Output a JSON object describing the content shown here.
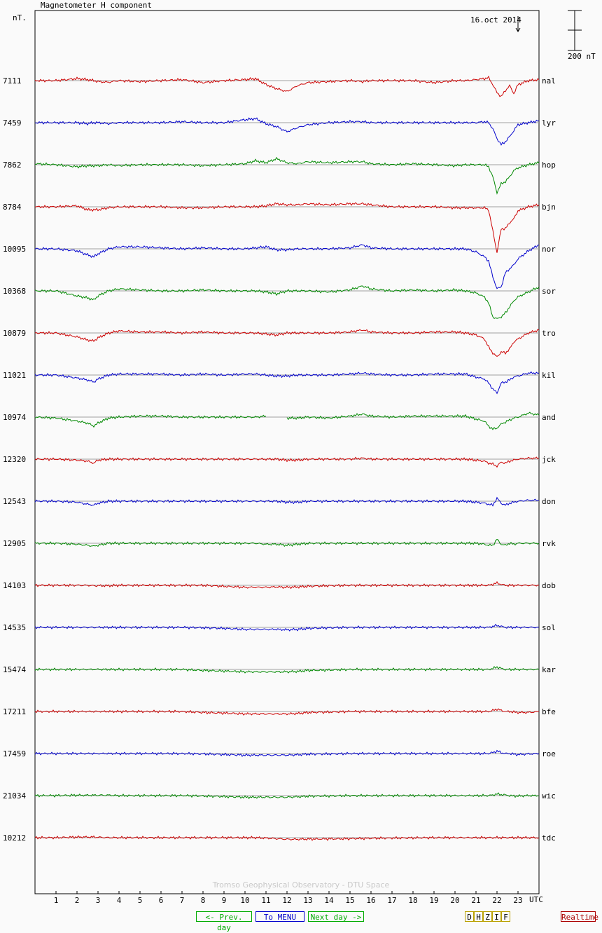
{
  "header": {
    "title": "Magnetometer H component",
    "unit": "nT.",
    "date": "16.oct 2014",
    "scale": "200 nT"
  },
  "footer": {
    "credit": "Tromso Geophysical Observatory - DTU Space"
  },
  "nav": {
    "prev": "<- Prev. day",
    "menu": "To MENU",
    "next": "Next day ->",
    "realtime": "Realtime"
  },
  "components": [
    "D",
    "H",
    "Z",
    "I",
    "F"
  ],
  "colors": {
    "red": "#cc0000",
    "blue": "#0000cc",
    "green": "#008800",
    "prev": "#00aa00",
    "menu": "#0000cc",
    "realtime": "#aa0000"
  },
  "chart_data": {
    "type": "line",
    "title": "Magnetometer H component",
    "xlabel": "UTC",
    "ylabel": "nT.",
    "x_ticks": [
      "1",
      "2",
      "3",
      "4",
      "5",
      "6",
      "7",
      "8",
      "9",
      "10",
      "11",
      "12",
      "13",
      "14",
      "15",
      "16",
      "17",
      "18",
      "19",
      "20",
      "21",
      "22",
      "23"
    ],
    "xlim": [
      0,
      24
    ],
    "scale_bar_nT": 200,
    "x": [
      0,
      1,
      2,
      2.5,
      2.8,
      3,
      3.5,
      4,
      5,
      6,
      7,
      8,
      9,
      10,
      10.5,
      11,
      11.5,
      12,
      12.5,
      13,
      14,
      15,
      15.6,
      16,
      17,
      18,
      19,
      20,
      20.5,
      21,
      21.4,
      21.6,
      21.8,
      22,
      22.2,
      22.4,
      22.6,
      22.8,
      23,
      23.5,
      24
    ],
    "series": [
      {
        "name": "nal",
        "baseline": 7111,
        "color": "red",
        "values": [
          0,
          0,
          10,
          5,
          0,
          -5,
          -8,
          0,
          -5,
          0,
          5,
          -10,
          0,
          5,
          10,
          -20,
          -40,
          -55,
          -25,
          -10,
          -5,
          0,
          -5,
          0,
          0,
          0,
          -10,
          0,
          0,
          5,
          10,
          15,
          -20,
          -60,
          -80,
          -50,
          -25,
          -65,
          -20,
          0,
          5
        ]
      },
      {
        "name": "lyr",
        "baseline": 7459,
        "color": "blue",
        "values": [
          0,
          0,
          0,
          -5,
          0,
          0,
          -5,
          0,
          0,
          0,
          5,
          0,
          0,
          15,
          20,
          -5,
          -20,
          -45,
          -25,
          -10,
          0,
          5,
          5,
          0,
          0,
          0,
          0,
          0,
          0,
          0,
          5,
          0,
          -30,
          -80,
          -110,
          -95,
          -70,
          -40,
          -10,
          0,
          10
        ]
      },
      {
        "name": "hop",
        "baseline": 7862,
        "color": "green",
        "values": [
          5,
          0,
          -10,
          -5,
          -5,
          -5,
          0,
          -5,
          0,
          0,
          0,
          -5,
          0,
          5,
          20,
          10,
          30,
          10,
          5,
          15,
          10,
          15,
          15,
          5,
          0,
          5,
          0,
          -5,
          0,
          0,
          0,
          -10,
          -60,
          -140,
          -95,
          -85,
          -60,
          -30,
          -15,
          0,
          10
        ]
      },
      {
        "name": "bjn",
        "baseline": 8784,
        "color": "red",
        "values": [
          0,
          0,
          5,
          -15,
          -15,
          -15,
          -5,
          0,
          0,
          0,
          -5,
          -5,
          0,
          0,
          0,
          5,
          15,
          10,
          10,
          15,
          10,
          15,
          15,
          10,
          0,
          0,
          0,
          -5,
          -5,
          -5,
          -5,
          -15,
          -120,
          -230,
          -110,
          -110,
          -80,
          -60,
          -20,
          0,
          10
        ]
      },
      {
        "name": "nor",
        "baseline": 10095,
        "color": "blue",
        "values": [
          0,
          0,
          -10,
          -30,
          -40,
          -25,
          0,
          10,
          10,
          5,
          0,
          5,
          0,
          0,
          5,
          10,
          -5,
          -5,
          0,
          0,
          0,
          5,
          20,
          5,
          0,
          0,
          0,
          0,
          0,
          -15,
          -40,
          -60,
          -140,
          -200,
          -190,
          -120,
          -100,
          -80,
          -50,
          -10,
          20
        ]
      },
      {
        "name": "sor",
        "baseline": 10368,
        "color": "green",
        "values": [
          0,
          0,
          -25,
          -35,
          -45,
          -25,
          0,
          10,
          5,
          0,
          0,
          5,
          0,
          0,
          0,
          -5,
          -15,
          0,
          0,
          0,
          -5,
          5,
          25,
          10,
          0,
          5,
          0,
          5,
          0,
          -10,
          -30,
          -60,
          -130,
          -140,
          -130,
          -110,
          -80,
          -50,
          -30,
          -5,
          20
        ]
      },
      {
        "name": "tro",
        "baseline": 10879,
        "color": "red",
        "values": [
          0,
          0,
          -20,
          -35,
          -40,
          -25,
          0,
          10,
          5,
          5,
          0,
          5,
          0,
          0,
          0,
          -5,
          -10,
          0,
          0,
          0,
          0,
          5,
          15,
          5,
          0,
          0,
          5,
          5,
          0,
          -10,
          -30,
          -70,
          -100,
          -120,
          -95,
          -100,
          -80,
          -45,
          -30,
          0,
          15
        ]
      },
      {
        "name": "kil",
        "baseline": 11021,
        "color": "blue",
        "values": [
          0,
          0,
          -15,
          -25,
          -35,
          -20,
          0,
          5,
          5,
          5,
          0,
          5,
          0,
          5,
          5,
          0,
          -5,
          -5,
          0,
          0,
          0,
          5,
          10,
          5,
          0,
          0,
          5,
          5,
          5,
          -10,
          -20,
          -40,
          -70,
          -90,
          -40,
          -35,
          -25,
          -10,
          -5,
          10,
          10
        ]
      },
      {
        "name": "and",
        "baseline": 10974,
        "color": "green",
        "values": [
          0,
          -5,
          -20,
          -30,
          -45,
          -30,
          -5,
          0,
          5,
          5,
          0,
          0,
          0,
          0,
          0,
          5,
          null,
          -5,
          -5,
          0,
          -5,
          5,
          15,
          5,
          0,
          5,
          5,
          5,
          5,
          -10,
          -20,
          -45,
          -60,
          -55,
          -35,
          -25,
          -15,
          -5,
          0,
          20,
          10
        ]
      },
      {
        "name": "jck",
        "baseline": 12320,
        "color": "red",
        "values": [
          0,
          0,
          -5,
          -10,
          -20,
          -5,
          0,
          0,
          0,
          0,
          0,
          0,
          0,
          0,
          0,
          0,
          0,
          -5,
          -5,
          0,
          0,
          0,
          5,
          0,
          0,
          0,
          0,
          0,
          0,
          -5,
          -10,
          -20,
          -25,
          -35,
          -15,
          -20,
          -10,
          -5,
          0,
          5,
          5
        ]
      },
      {
        "name": "don",
        "baseline": 12543,
        "color": "blue",
        "values": [
          0,
          0,
          -5,
          -15,
          -20,
          -10,
          0,
          0,
          0,
          0,
          0,
          0,
          0,
          0,
          0,
          0,
          0,
          -5,
          -5,
          0,
          0,
          0,
          0,
          0,
          0,
          0,
          0,
          0,
          0,
          -5,
          -10,
          -15,
          -20,
          15,
          -10,
          -20,
          -10,
          -5,
          0,
          5,
          5
        ]
      },
      {
        "name": "rvk",
        "baseline": 12905,
        "color": "green",
        "values": [
          0,
          0,
          -5,
          -10,
          -15,
          -10,
          0,
          0,
          0,
          0,
          0,
          0,
          0,
          0,
          0,
          -5,
          -5,
          -10,
          -5,
          0,
          0,
          0,
          0,
          0,
          0,
          0,
          0,
          0,
          0,
          0,
          -5,
          -10,
          -10,
          20,
          -5,
          -10,
          0,
          -5,
          0,
          0,
          0
        ]
      },
      {
        "name": "dob",
        "baseline": 14103,
        "color": "red",
        "values": [
          0,
          0,
          0,
          0,
          -2,
          -2,
          -2,
          0,
          0,
          0,
          0,
          0,
          -5,
          -10,
          -10,
          -10,
          -8,
          -10,
          -8,
          -5,
          -2,
          0,
          0,
          0,
          0,
          0,
          0,
          0,
          0,
          0,
          0,
          0,
          5,
          12,
          5,
          0,
          0,
          0,
          0,
          0,
          0
        ]
      },
      {
        "name": "sol",
        "baseline": 14535,
        "color": "blue",
        "values": [
          0,
          0,
          0,
          0,
          0,
          0,
          0,
          0,
          0,
          0,
          0,
          -2,
          -5,
          -10,
          -10,
          -10,
          -10,
          -12,
          -10,
          -5,
          -2,
          0,
          0,
          0,
          0,
          0,
          0,
          0,
          0,
          0,
          0,
          0,
          5,
          10,
          5,
          0,
          0,
          0,
          0,
          0,
          0
        ]
      },
      {
        "name": "kar",
        "baseline": 15474,
        "color": "green",
        "values": [
          0,
          0,
          0,
          0,
          0,
          0,
          0,
          0,
          0,
          0,
          0,
          -5,
          -8,
          -12,
          -12,
          -12,
          -12,
          -12,
          -10,
          -5,
          -3,
          0,
          0,
          0,
          0,
          0,
          0,
          0,
          0,
          0,
          0,
          0,
          5,
          12,
          5,
          0,
          0,
          0,
          0,
          0,
          0
        ]
      },
      {
        "name": "bfe",
        "baseline": 17211,
        "color": "red",
        "values": [
          0,
          0,
          0,
          0,
          0,
          0,
          0,
          0,
          0,
          0,
          0,
          -5,
          -8,
          -12,
          -12,
          -12,
          -12,
          -12,
          -10,
          -5,
          -3,
          0,
          0,
          0,
          0,
          0,
          0,
          0,
          0,
          0,
          0,
          0,
          5,
          12,
          5,
          0,
          0,
          -3,
          -5,
          -5,
          0
        ]
      },
      {
        "name": "roe",
        "baseline": 17459,
        "color": "blue",
        "values": [
          0,
          0,
          0,
          0,
          0,
          0,
          0,
          0,
          0,
          0,
          0,
          -2,
          -5,
          -8,
          -8,
          -8,
          -8,
          -8,
          -6,
          -3,
          -2,
          0,
          0,
          0,
          0,
          0,
          0,
          0,
          0,
          0,
          0,
          0,
          5,
          12,
          5,
          0,
          0,
          -3,
          -5,
          -2,
          0
        ]
      },
      {
        "name": "wic",
        "baseline": 21034,
        "color": "green",
        "values": [
          0,
          0,
          2,
          2,
          2,
          2,
          2,
          0,
          0,
          0,
          0,
          -2,
          -5,
          -8,
          -8,
          -8,
          -8,
          -8,
          -6,
          -3,
          -2,
          0,
          0,
          0,
          0,
          0,
          0,
          0,
          0,
          0,
          0,
          0,
          3,
          8,
          5,
          3,
          0,
          -2,
          -2,
          0,
          0
        ]
      },
      {
        "name": "tdc",
        "baseline": 10212,
        "color": "red",
        "values": [
          0,
          0,
          3,
          3,
          3,
          2,
          0,
          0,
          0,
          0,
          0,
          0,
          0,
          0,
          0,
          -2,
          -5,
          -8,
          -8,
          -7,
          -6,
          -5,
          -4,
          -3,
          -2,
          -1,
          0,
          0,
          0,
          0,
          0,
          0,
          0,
          0,
          0,
          0,
          0,
          0,
          0,
          0,
          0
        ]
      }
    ]
  }
}
